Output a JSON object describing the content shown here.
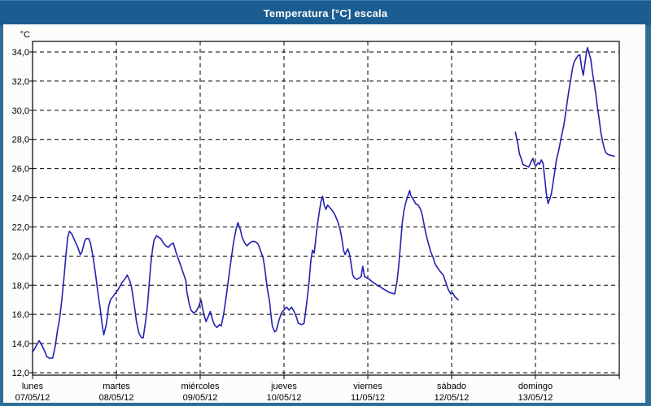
{
  "window": {
    "title": "Temperatura [°C] escala"
  },
  "colors": {
    "titlebar_bg": "#1C5D91",
    "titlebar_text": "#FFFFFF",
    "window_border": "#2E6E96",
    "content_bg": "#FCFDFB",
    "plot_bg": "#FFFFFF",
    "line": "#2222AE",
    "grid": "#000000",
    "frame": "#000000",
    "label_text": "#000000"
  },
  "chart_data": {
    "type": "line",
    "title": "Temperatura [°C] escala",
    "grid": "dashed",
    "legend": "none",
    "y_axis": {
      "unit": "°C",
      "ylim": [
        12,
        34
      ],
      "tick_step": 2,
      "ticks": [
        {
          "v": 34,
          "label": "34,0"
        },
        {
          "v": 32,
          "label": "32,0"
        },
        {
          "v": 30,
          "label": "30,0"
        },
        {
          "v": 28,
          "label": "28,0"
        },
        {
          "v": 26,
          "label": "26,0"
        },
        {
          "v": 24,
          "label": "24,0"
        },
        {
          "v": 22,
          "label": "22,0"
        },
        {
          "v": 20,
          "label": "20,0"
        },
        {
          "v": 18,
          "label": "18,0"
        },
        {
          "v": 16,
          "label": "16,0"
        },
        {
          "v": 14,
          "label": "14,0"
        },
        {
          "v": 12,
          "label": "12,0"
        }
      ]
    },
    "x_axis": {
      "ticks": [
        {
          "day": "lunes",
          "date": "07/05/12"
        },
        {
          "day": "martes",
          "date": "08/05/12"
        },
        {
          "day": "miércoles",
          "date": "09/05/12"
        },
        {
          "day": "jueves",
          "date": "10/05/12"
        },
        {
          "day": "viernes",
          "date": "11/05/12"
        },
        {
          "day": "sábado",
          "date": "12/05/12"
        },
        {
          "day": "domingo",
          "date": "13/05/12"
        }
      ]
    },
    "series": [
      {
        "name": "Temperatura",
        "color": "#2222AE",
        "x_unit": "days since 07/05/12 00:00",
        "segments": [
          [
            [
              0.01,
              13.5
            ],
            [
              0.04,
              13.8
            ],
            [
              0.08,
              14.2
            ],
            [
              0.11,
              13.9
            ],
            [
              0.15,
              13.4
            ],
            [
              0.17,
              13.1
            ],
            [
              0.2,
              13.0
            ],
            [
              0.24,
              13.0
            ],
            [
              0.27,
              13.8
            ],
            [
              0.3,
              15.0
            ],
            [
              0.32,
              15.6
            ],
            [
              0.35,
              17.0
            ],
            [
              0.38,
              18.8
            ],
            [
              0.4,
              20.2
            ],
            [
              0.42,
              21.3
            ],
            [
              0.44,
              21.7
            ],
            [
              0.47,
              21.5
            ],
            [
              0.5,
              21.1
            ],
            [
              0.54,
              20.6
            ],
            [
              0.57,
              20.1
            ],
            [
              0.59,
              20.3
            ],
            [
              0.62,
              21.0
            ],
            [
              0.64,
              21.2
            ],
            [
              0.67,
              21.2
            ],
            [
              0.69,
              20.9
            ],
            [
              0.72,
              20.0
            ],
            [
              0.75,
              18.8
            ],
            [
              0.78,
              17.5
            ],
            [
              0.81,
              16.3
            ],
            [
              0.83,
              15.3
            ],
            [
              0.85,
              14.6
            ],
            [
              0.88,
              15.3
            ],
            [
              0.91,
              16.6
            ],
            [
              0.93,
              17.0
            ],
            [
              0.97,
              17.3
            ],
            [
              1.02,
              17.7
            ],
            [
              1.07,
              18.2
            ],
            [
              1.11,
              18.5
            ],
            [
              1.13,
              18.7
            ],
            [
              1.16,
              18.3
            ],
            [
              1.18,
              17.9
            ],
            [
              1.21,
              16.8
            ],
            [
              1.24,
              15.5
            ],
            [
              1.27,
              14.7
            ],
            [
              1.3,
              14.4
            ],
            [
              1.32,
              14.4
            ],
            [
              1.35,
              15.6
            ],
            [
              1.37,
              16.5
            ],
            [
              1.39,
              18.0
            ],
            [
              1.41,
              19.4
            ],
            [
              1.43,
              20.4
            ],
            [
              1.45,
              21.1
            ],
            [
              1.48,
              21.4
            ],
            [
              1.5,
              21.3
            ],
            [
              1.53,
              21.2
            ],
            [
              1.56,
              20.9
            ],
            [
              1.59,
              20.7
            ],
            [
              1.62,
              20.6
            ],
            [
              1.65,
              20.8
            ],
            [
              1.68,
              20.9
            ],
            [
              1.71,
              20.3
            ],
            [
              1.74,
              19.8
            ],
            [
              1.77,
              19.3
            ],
            [
              1.8,
              18.8
            ],
            [
              1.83,
              18.3
            ],
            [
              1.84,
              17.6
            ],
            [
              1.87,
              16.7
            ],
            [
              1.89,
              16.3
            ],
            [
              1.92,
              16.1
            ],
            [
              1.95,
              16.2
            ],
            [
              1.98,
              16.5
            ],
            [
              2.01,
              17.0
            ],
            [
              2.04,
              16.1
            ],
            [
              2.07,
              15.5
            ],
            [
              2.1,
              15.9
            ],
            [
              2.12,
              16.2
            ],
            [
              2.15,
              15.6
            ],
            [
              2.17,
              15.3
            ],
            [
              2.2,
              15.1
            ],
            [
              2.23,
              15.3
            ],
            [
              2.25,
              15.2
            ],
            [
              2.28,
              16.0
            ],
            [
              2.31,
              17.2
            ],
            [
              2.34,
              18.5
            ],
            [
              2.37,
              19.8
            ],
            [
              2.4,
              21.0
            ],
            [
              2.43,
              21.9
            ],
            [
              2.45,
              22.3
            ],
            [
              2.48,
              21.8
            ],
            [
              2.5,
              21.3
            ],
            [
              2.53,
              20.9
            ],
            [
              2.56,
              20.7
            ],
            [
              2.59,
              20.9
            ],
            [
              2.62,
              21.0
            ],
            [
              2.65,
              21.0
            ],
            [
              2.68,
              20.9
            ],
            [
              2.7,
              20.7
            ],
            [
              2.73,
              20.2
            ],
            [
              2.75,
              19.9
            ],
            [
              2.77,
              19.2
            ],
            [
              2.8,
              17.8
            ],
            [
              2.83,
              16.8
            ],
            [
              2.84,
              16.2
            ],
            [
              2.86,
              15.2
            ],
            [
              2.89,
              14.8
            ],
            [
              2.91,
              14.9
            ],
            [
              2.94,
              15.6
            ],
            [
              2.97,
              16.1
            ],
            [
              3.0,
              16.3
            ],
            [
              3.03,
              16.5
            ],
            [
              3.06,
              16.3
            ],
            [
              3.09,
              16.5
            ],
            [
              3.12,
              16.2
            ],
            [
              3.15,
              15.8
            ],
            [
              3.17,
              15.4
            ],
            [
              3.21,
              15.3
            ],
            [
              3.24,
              15.4
            ],
            [
              3.26,
              16.3
            ],
            [
              3.28,
              17.2
            ],
            [
              3.3,
              18.3
            ],
            [
              3.32,
              19.7
            ],
            [
              3.34,
              20.4
            ],
            [
              3.36,
              20.2
            ],
            [
              3.38,
              21.2
            ],
            [
              3.4,
              22.2
            ],
            [
              3.42,
              23.0
            ],
            [
              3.44,
              23.7
            ],
            [
              3.46,
              24.1
            ],
            [
              3.48,
              23.5
            ],
            [
              3.5,
              23.2
            ],
            [
              3.52,
              23.5
            ],
            [
              3.55,
              23.3
            ],
            [
              3.58,
              23.1
            ],
            [
              3.61,
              22.8
            ],
            [
              3.64,
              22.4
            ],
            [
              3.67,
              21.8
            ],
            [
              3.69,
              21.2
            ],
            [
              3.71,
              20.4
            ],
            [
              3.73,
              20.1
            ],
            [
              3.76,
              20.5
            ],
            [
              3.78,
              20.2
            ],
            [
              3.8,
              19.5
            ],
            [
              3.82,
              18.7
            ],
            [
              3.84,
              18.5
            ],
            [
              3.87,
              18.4
            ],
            [
              3.9,
              18.5
            ],
            [
              3.92,
              18.6
            ],
            [
              3.94,
              19.3
            ],
            [
              3.96,
              18.6
            ],
            [
              3.99,
              18.5
            ],
            [
              4.02,
              18.4
            ],
            [
              4.06,
              18.2
            ],
            [
              4.09,
              18.1
            ],
            [
              4.12,
              17.95
            ],
            [
              4.15,
              17.9
            ],
            [
              4.17,
              17.8
            ],
            [
              4.2,
              17.7
            ],
            [
              4.23,
              17.6
            ],
            [
              4.26,
              17.5
            ],
            [
              4.29,
              17.45
            ],
            [
              4.32,
              17.4
            ],
            [
              4.35,
              18.3
            ],
            [
              4.37,
              19.4
            ],
            [
              4.39,
              20.8
            ],
            [
              4.41,
              22.2
            ],
            [
              4.43,
              23.1
            ],
            [
              4.45,
              23.6
            ],
            [
              4.47,
              24.0
            ],
            [
              4.5,
              24.5
            ],
            [
              4.51,
              24.2
            ],
            [
              4.54,
              23.9
            ],
            [
              4.57,
              23.6
            ],
            [
              4.6,
              23.5
            ],
            [
              4.63,
              23.2
            ],
            [
              4.65,
              22.8
            ],
            [
              4.67,
              22.2
            ],
            [
              4.69,
              21.6
            ],
            [
              4.72,
              20.9
            ],
            [
              4.75,
              20.3
            ],
            [
              4.78,
              19.9
            ],
            [
              4.8,
              19.5
            ],
            [
              4.83,
              19.2
            ],
            [
              4.87,
              18.9
            ],
            [
              4.9,
              18.7
            ],
            [
              4.93,
              18.2
            ],
            [
              4.96,
              17.7
            ],
            [
              4.99,
              17.4
            ],
            [
              5.01,
              17.5
            ],
            [
              5.04,
              17.2
            ],
            [
              5.08,
              17.0
            ]
          ],
          [
            [
              5.76,
              28.5
            ],
            [
              5.79,
              27.7
            ],
            [
              5.81,
              27.0
            ],
            [
              5.83,
              26.7
            ],
            [
              5.85,
              26.3
            ],
            [
              5.88,
              26.2
            ],
            [
              5.92,
              26.1
            ],
            [
              5.95,
              26.5
            ],
            [
              5.97,
              26.7
            ],
            [
              5.99,
              26.3
            ],
            [
              6.01,
              26.2
            ],
            [
              6.03,
              26.4
            ],
            [
              6.05,
              26.3
            ],
            [
              6.07,
              26.6
            ],
            [
              6.09,
              26.4
            ],
            [
              6.11,
              25.4
            ],
            [
              6.13,
              24.3
            ],
            [
              6.15,
              23.6
            ],
            [
              6.17,
              23.9
            ],
            [
              6.19,
              24.3
            ],
            [
              6.21,
              25.0
            ],
            [
              6.23,
              25.8
            ],
            [
              6.25,
              26.6
            ],
            [
              6.28,
              27.3
            ],
            [
              6.31,
              28.2
            ],
            [
              6.34,
              29.0
            ],
            [
              6.36,
              29.8
            ],
            [
              6.38,
              30.6
            ],
            [
              6.4,
              31.4
            ],
            [
              6.42,
              32.1
            ],
            [
              6.44,
              32.8
            ],
            [
              6.46,
              33.3
            ],
            [
              6.49,
              33.6
            ],
            [
              6.51,
              33.75
            ],
            [
              6.53,
              33.8
            ],
            [
              6.55,
              33.0
            ],
            [
              6.57,
              32.4
            ],
            [
              6.59,
              33.2
            ],
            [
              6.61,
              34.0
            ],
            [
              6.62,
              34.3
            ],
            [
              6.64,
              33.9
            ],
            [
              6.66,
              33.5
            ],
            [
              6.68,
              32.6
            ],
            [
              6.7,
              31.9
            ],
            [
              6.72,
              31.1
            ],
            [
              6.74,
              30.2
            ],
            [
              6.76,
              29.4
            ],
            [
              6.78,
              28.5
            ],
            [
              6.8,
              27.9
            ],
            [
              6.82,
              27.4
            ],
            [
              6.84,
              27.1
            ],
            [
              6.87,
              26.95
            ],
            [
              6.91,
              26.9
            ],
            [
              6.94,
              26.85
            ]
          ]
        ]
      }
    ]
  }
}
